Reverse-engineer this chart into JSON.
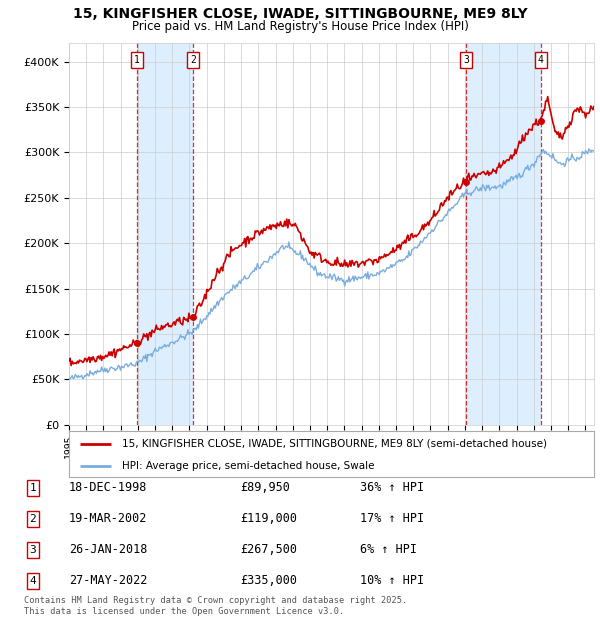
{
  "title": "15, KINGFISHER CLOSE, IWADE, SITTINGBOURNE, ME9 8LY",
  "subtitle": "Price paid vs. HM Land Registry's House Price Index (HPI)",
  "legend_line1": "15, KINGFISHER CLOSE, IWADE, SITTINGBOURNE, ME9 8LY (semi-detached house)",
  "legend_line2": "HPI: Average price, semi-detached house, Swale",
  "footer": "Contains HM Land Registry data © Crown copyright and database right 2025.\nThis data is licensed under the Open Government Licence v3.0.",
  "transactions": [
    {
      "num": 1,
      "date": "18-DEC-1998",
      "price": 89950,
      "hpi_pct": "36% ↑ HPI",
      "date_x": 1998.96
    },
    {
      "num": 2,
      "date": "19-MAR-2002",
      "price": 119000,
      "hpi_pct": "17% ↑ HPI",
      "date_x": 2002.21
    },
    {
      "num": 3,
      "date": "26-JAN-2018",
      "price": 267500,
      "hpi_pct": "6% ↑ HPI",
      "date_x": 2018.07
    },
    {
      "num": 4,
      "date": "27-MAY-2022",
      "price": 335000,
      "hpi_pct": "10% ↑ HPI",
      "date_x": 2022.41
    }
  ],
  "price_line_color": "#cc0000",
  "hpi_line_color": "#7aadde",
  "shade_color": "#ddeeff",
  "grid_color": "#cccccc",
  "background_color": "#ffffff",
  "ylim": [
    0,
    420000
  ],
  "xlim_start": 1995.0,
  "xlim_end": 2025.5
}
